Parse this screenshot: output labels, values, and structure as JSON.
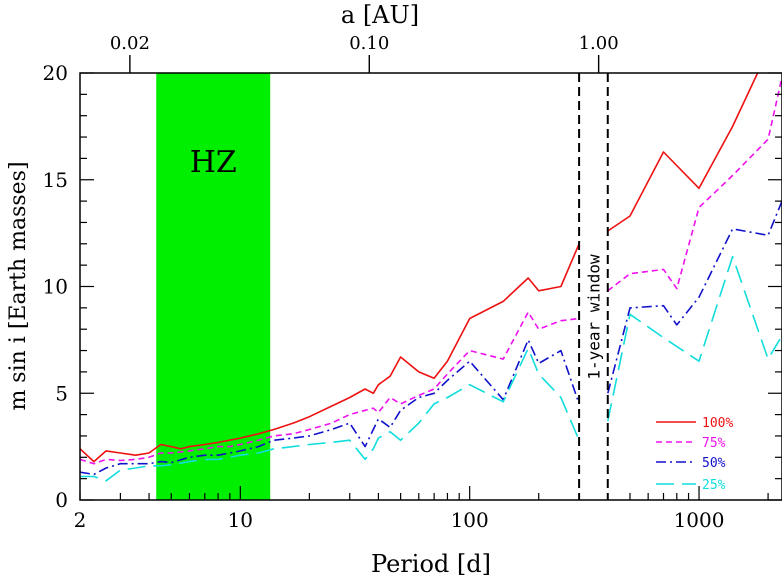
{
  "chart_data": {
    "type": "line",
    "xlabel": "Period [d]",
    "ylabel": "m sin i [Earth masses]",
    "top_axis_label": "a [AU]",
    "x_scale": "log",
    "xlim": [
      2,
      2300
    ],
    "ylim": [
      0,
      20
    ],
    "grid": false,
    "legend_position": "bottom-right",
    "x_tick_labels": [
      "2",
      "10",
      "100",
      "1000"
    ],
    "x_ticks": [
      2,
      10,
      100,
      1000
    ],
    "y_tick_labels": [
      "0",
      "5",
      "10",
      "15",
      "20"
    ],
    "y_ticks": [
      0,
      5,
      10,
      15,
      20
    ],
    "top_tick_labels": [
      "0.02",
      "0.10",
      "1.00"
    ],
    "top_ticks_period": [
      3.3,
      36.5,
      365
    ],
    "hz_band": {
      "x_range": [
        4.3,
        13.5
      ],
      "label": "HZ",
      "color": "#00ee00"
    },
    "year_window": {
      "x_range": [
        300,
        400
      ],
      "label": "1-year window"
    },
    "series": [
      {
        "name": "100%",
        "color": "#ee1111",
        "dash": "solid",
        "segments": [
          {
            "x": [
              2,
              2.3,
              2.6,
              3.0,
              3.5,
              4.0,
              4.5,
              5.0,
              5.5,
              6.0,
              7.0,
              8.0,
              9.0,
              10.0,
              12.0,
              14.0,
              17.0,
              20.0,
              25.0,
              30.0,
              35.0,
              38.0,
              40.0,
              45.0,
              50.0,
              60.0,
              70.0,
              80.0,
              100.0,
              140.0,
              180.0,
              200.0,
              250.0,
              300.0
            ],
            "y": [
              2.4,
              1.8,
              2.3,
              2.2,
              2.1,
              2.2,
              2.6,
              2.5,
              2.4,
              2.5,
              2.6,
              2.7,
              2.8,
              2.9,
              3.1,
              3.3,
              3.6,
              3.9,
              4.4,
              4.8,
              5.2,
              5.0,
              5.4,
              5.8,
              6.7,
              6.0,
              5.7,
              6.5,
              8.5,
              9.3,
              10.4,
              9.8,
              10.0,
              12.0
            ]
          },
          {
            "x": [
              400,
              500,
              700,
              1000,
              1400,
              1800
            ],
            "y": [
              12.6,
              13.3,
              16.3,
              14.6,
              17.5,
              20.0
            ]
          }
        ]
      },
      {
        "name": "75%",
        "color": "#ee11ee",
        "dash": "short",
        "segments": [
          {
            "x": [
              2,
              2.3,
              2.6,
              3.0,
              3.5,
              4.0,
              4.5,
              5.0,
              6.0,
              7.0,
              8.0,
              9.0,
              10.0,
              12.0,
              14.0,
              17.0,
              20.0,
              25.0,
              30.0,
              35.0,
              38.0,
              40.0,
              45.0,
              50.0,
              60.0,
              70.0,
              80.0,
              100.0,
              140.0,
              180.0,
              200.0,
              250.0,
              300.0
            ],
            "y": [
              1.9,
              1.7,
              1.9,
              1.85,
              1.9,
              2.0,
              2.2,
              2.2,
              2.3,
              2.4,
              2.5,
              2.5,
              2.6,
              2.8,
              3.0,
              3.1,
              3.3,
              3.6,
              4.0,
              4.2,
              4.3,
              4.1,
              4.8,
              4.5,
              4.9,
              5.2,
              5.9,
              7.0,
              6.6,
              8.8,
              8.0,
              8.4,
              8.5
            ]
          },
          {
            "x": [
              400,
              500,
              700,
              800,
              1000,
              1400,
              2000,
              2300
            ],
            "y": [
              9.8,
              10.6,
              10.8,
              9.9,
              13.7,
              15.2,
              16.9,
              19.8
            ]
          }
        ]
      },
      {
        "name": "50%",
        "color": "#1111cc",
        "dash": "dashdot",
        "segments": [
          {
            "x": [
              2,
              2.3,
              2.6,
              3.0,
              3.5,
              4.0,
              4.5,
              5.0,
              6.0,
              7.0,
              8.0,
              9.0,
              10.0,
              12.0,
              14.0,
              17.0,
              20.0,
              25.0,
              30.0,
              35.0,
              38.0,
              40.0,
              45.0,
              50.0,
              60.0,
              70.0,
              80.0,
              100.0,
              140.0,
              180.0,
              200.0,
              250.0,
              300.0
            ],
            "y": [
              1.3,
              1.2,
              1.5,
              1.7,
              1.7,
              1.7,
              1.8,
              1.75,
              2.0,
              2.1,
              2.1,
              2.2,
              2.3,
              2.5,
              2.8,
              2.9,
              3.0,
              3.3,
              3.6,
              2.5,
              3.3,
              3.8,
              3.4,
              4.2,
              4.8,
              5.0,
              5.6,
              6.5,
              4.7,
              7.5,
              6.4,
              7.0,
              4.5
            ]
          },
          {
            "x": [
              400,
              500,
              700,
              800,
              1000,
              1400,
              2000,
              2300
            ],
            "y": [
              5.0,
              9.0,
              9.1,
              8.2,
              9.5,
              12.7,
              12.4,
              14.0
            ]
          }
        ]
      },
      {
        "name": "25%",
        "color": "#11dddd",
        "dash": "long",
        "segments": [
          {
            "x": [
              2,
              2.3,
              2.6,
              3.0,
              3.5,
              4.0,
              4.5,
              5.0,
              6.0,
              7.0,
              8.0,
              9.0,
              10.0,
              12.0,
              14.0,
              17.0,
              20.0,
              25.0,
              30.0,
              35.0,
              38.0,
              40.0,
              45.0,
              50.0,
              60.0,
              70.0,
              80.0,
              100.0,
              140.0,
              180.0,
              200.0,
              250.0,
              300.0
            ],
            "y": [
              1.1,
              1.1,
              0.9,
              1.4,
              1.5,
              1.6,
              1.6,
              1.65,
              1.8,
              1.9,
              1.9,
              2.0,
              2.1,
              2.2,
              2.4,
              2.5,
              2.6,
              2.7,
              2.8,
              1.9,
              2.4,
              2.9,
              3.2,
              2.8,
              3.6,
              4.5,
              4.8,
              5.4,
              4.6,
              7.1,
              5.9,
              4.8,
              2.8
            ]
          },
          {
            "x": [
              400,
              500,
              700,
              1000,
              1400,
              2000,
              2300
            ],
            "y": [
              3.7,
              8.7,
              7.6,
              6.5,
              11.4,
              6.6,
              7.7
            ]
          }
        ]
      }
    ]
  }
}
